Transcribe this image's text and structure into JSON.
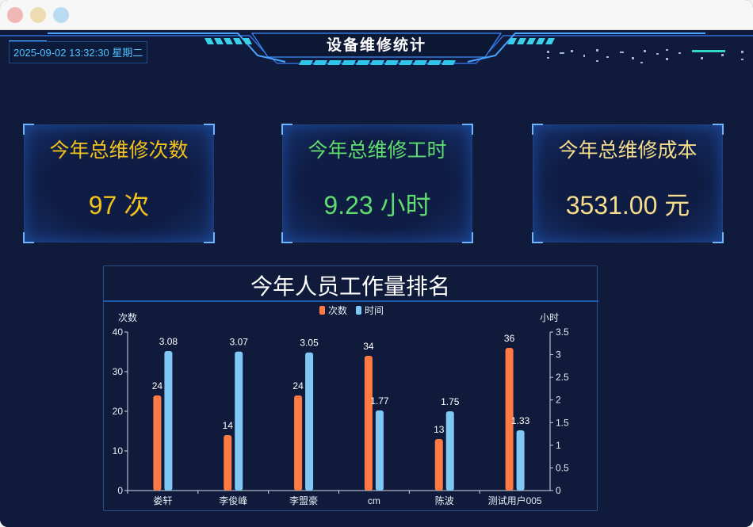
{
  "window": {
    "controls": [
      "close",
      "minimize",
      "zoom"
    ]
  },
  "header": {
    "datetime": "2025-09-02 13:32:30 星期二",
    "title": "设备维修统计"
  },
  "cards": [
    {
      "title": "今年总维修次数",
      "value": "97 次"
    },
    {
      "title": "今年总维修工时",
      "value": "9.23 小时"
    },
    {
      "title": "今年总维修成本",
      "value": "3531.00 元"
    }
  ],
  "chart_data": {
    "type": "bar",
    "title": "今年人员工作量排名",
    "categories": [
      "娄轩",
      "李俊峰",
      "李盟豪",
      "cm",
      "陈波",
      "测试用户005"
    ],
    "series": [
      {
        "name": "次数",
        "axis": "left",
        "color": "#ff7a45",
        "values": [
          24,
          14,
          24,
          34,
          13,
          36
        ]
      },
      {
        "name": "时间",
        "axis": "right",
        "color": "#7fc8f5",
        "values": [
          3.08,
          3.07,
          3.05,
          1.77,
          1.75,
          1.33
        ]
      }
    ],
    "ylabel": "次数",
    "ylabel_right": "小时",
    "ylim": [
      0,
      40
    ],
    "ylim_right": [
      0,
      3.5
    ],
    "yticks": [
      0,
      10,
      20,
      30,
      40
    ],
    "yticks_right": [
      0,
      0.5,
      1,
      1.5,
      2,
      2.5,
      3,
      3.5
    ],
    "legend": "top-center",
    "grid": false
  }
}
